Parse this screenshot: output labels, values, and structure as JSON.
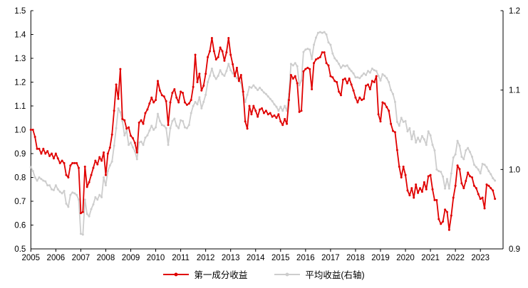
{
  "legend": {
    "series1_label": "第一成分收益",
    "series2_label": "平均收益(右轴)"
  },
  "colors": {
    "series1": "#e00000",
    "series2": "#cdcdcd",
    "axis": "#000000"
  },
  "chart_data": {
    "type": "line",
    "title": "",
    "x_start_year": 2005,
    "x_start_month": 1,
    "x_axis": {
      "labels": [
        "2005",
        "2006",
        "2007",
        "2008",
        "2009",
        "2010",
        "2011",
        "2012",
        "2013",
        "2014",
        "2015",
        "2016",
        "2017",
        "2018",
        "2019",
        "2020",
        "2021",
        "2022",
        "2023"
      ]
    },
    "y_axis_left": {
      "min": 0.5,
      "max": 1.5,
      "tick_step": 0.1,
      "labels": [
        "0.5",
        "0.6",
        "0.7",
        "0.8",
        "0.9",
        "1.0",
        "1.1",
        "1.2",
        "1.3",
        "1.4",
        "1.5"
      ]
    },
    "y_axis_right": {
      "min": 0.9,
      "max": 1.2,
      "tick_step": 0.1,
      "labels": [
        "0.9",
        "1.0",
        "1.1",
        "1.2"
      ]
    },
    "grid": false,
    "legend_position": "bottom-center",
    "series": [
      {
        "name": "第一成分收益",
        "axis": "left",
        "color": "#e00000",
        "values": [
          1.0,
          1.0,
          0.97,
          0.92,
          0.92,
          0.9,
          0.92,
          0.9,
          0.91,
          0.89,
          0.9,
          0.88,
          0.9,
          0.88,
          0.86,
          0.87,
          0.86,
          0.81,
          0.8,
          0.85,
          0.86,
          0.86,
          0.86,
          0.84,
          0.65,
          0.655,
          0.845,
          0.76,
          0.78,
          0.81,
          0.84,
          0.87,
          0.855,
          0.885,
          0.87,
          0.905,
          0.81,
          0.9,
          0.925,
          0.98,
          1.08,
          1.19,
          1.13,
          1.255,
          1.045,
          1.04,
          1.005,
          1.01,
          0.975,
          0.965,
          0.945,
          0.905,
          1.03,
          1.04,
          1.025,
          1.07,
          1.085,
          1.11,
          1.135,
          1.115,
          1.125,
          1.205,
          1.165,
          1.145,
          1.14,
          1.12,
          1.02,
          1.115,
          1.155,
          1.17,
          1.135,
          1.115,
          1.16,
          1.155,
          1.115,
          1.105,
          1.11,
          1.125,
          1.18,
          1.315,
          1.2,
          1.235,
          1.165,
          1.185,
          1.235,
          1.305,
          1.33,
          1.385,
          1.33,
          1.295,
          1.305,
          1.345,
          1.33,
          1.29,
          1.325,
          1.385,
          1.315,
          1.275,
          1.225,
          1.26,
          1.205,
          1.23,
          1.16,
          1.035,
          1.005,
          1.1,
          1.065,
          1.1,
          1.08,
          1.055,
          1.085,
          1.09,
          1.07,
          1.08,
          1.065,
          1.07,
          1.055,
          1.06,
          1.05,
          1.065,
          1.035,
          1.02,
          1.045,
          1.025,
          1.125,
          1.23,
          1.215,
          1.225,
          1.195,
          1.075,
          1.08,
          1.245,
          1.255,
          1.26,
          1.255,
          1.17,
          1.28,
          1.295,
          1.3,
          1.305,
          1.325,
          1.325,
          1.28,
          1.27,
          1.225,
          1.22,
          1.205,
          1.2,
          1.16,
          1.145,
          1.21,
          1.215,
          1.195,
          1.215,
          1.19,
          1.165,
          1.135,
          1.115,
          1.135,
          1.125,
          1.13,
          1.185,
          1.19,
          1.17,
          1.205,
          1.2,
          1.225,
          1.065,
          1.035,
          1.115,
          1.11,
          1.095,
          1.08,
          1.025,
          0.995,
          0.99,
          0.915,
          0.845,
          0.8,
          0.845,
          0.81,
          0.745,
          0.725,
          0.755,
          0.715,
          0.77,
          0.735,
          0.755,
          0.74,
          0.78,
          0.75,
          0.805,
          0.81,
          0.75,
          0.705,
          0.705,
          0.625,
          0.605,
          0.615,
          0.665,
          0.655,
          0.58,
          0.64,
          0.715,
          0.765,
          0.85,
          0.835,
          0.775,
          0.755,
          0.785,
          0.82,
          0.805,
          0.8,
          0.765,
          0.755,
          0.73,
          0.71,
          0.715,
          0.67,
          0.77,
          0.765,
          0.755,
          0.745,
          0.71
        ]
      },
      {
        "name": "平均收益(右轴)",
        "axis": "right",
        "color": "#cdcdcd",
        "values": [
          1.003,
          0.998,
          0.99,
          0.986,
          0.99,
          0.988,
          0.986,
          0.985,
          0.98,
          0.98,
          0.975,
          0.974,
          0.98,
          0.975,
          0.972,
          0.97,
          0.973,
          0.957,
          0.953,
          0.968,
          0.971,
          0.97,
          0.968,
          0.962,
          0.919,
          0.918,
          0.962,
          0.944,
          0.941,
          0.95,
          0.956,
          0.965,
          0.962,
          0.968,
          0.965,
          0.99,
          0.98,
          0.998,
          1.005,
          1.01,
          1.03,
          1.052,
          1.077,
          1.072,
          1.061,
          1.043,
          1.049,
          1.031,
          1.034,
          1.028,
          1.023,
          1.013,
          1.034,
          1.035,
          1.031,
          1.04,
          1.043,
          1.049,
          1.055,
          1.05,
          1.053,
          1.07,
          1.061,
          1.056,
          1.055,
          1.052,
          1.031,
          1.052,
          1.061,
          1.064,
          1.055,
          1.052,
          1.062,
          1.061,
          1.053,
          1.052,
          1.056,
          1.071,
          1.08,
          1.085,
          1.082,
          1.091,
          1.077,
          1.085,
          1.094,
          1.11,
          1.118,
          1.127,
          1.118,
          1.114,
          1.118,
          1.125,
          1.12,
          1.118,
          1.124,
          1.133,
          1.125,
          1.121,
          1.119,
          1.115,
          1.112,
          1.109,
          1.094,
          1.085,
          1.094,
          1.104,
          1.103,
          1.106,
          1.103,
          1.1,
          1.103,
          1.1,
          1.097,
          1.095,
          1.092,
          1.089,
          1.086,
          1.082,
          1.079,
          1.074,
          1.079,
          1.074,
          1.08,
          1.074,
          1.095,
          1.133,
          1.131,
          1.134,
          1.13,
          1.106,
          1.112,
          1.148,
          1.151,
          1.152,
          1.151,
          1.139,
          1.157,
          1.166,
          1.172,
          1.173,
          1.172,
          1.173,
          1.17,
          1.16,
          1.157,
          1.146,
          1.14,
          1.137,
          1.133,
          1.128,
          1.131,
          1.13,
          1.131,
          1.127,
          1.124,
          1.121,
          1.116,
          1.116,
          1.115,
          1.118,
          1.121,
          1.119,
          1.124,
          1.122,
          1.127,
          1.125,
          1.124,
          1.118,
          1.112,
          1.12,
          1.118,
          1.115,
          1.11,
          1.1,
          1.095,
          1.085,
          1.06,
          1.055,
          1.065,
          1.06,
          1.061,
          1.048,
          1.052,
          1.038,
          1.048,
          1.034,
          1.04,
          1.035,
          1.042,
          1.038,
          1.031,
          1.048,
          1.043,
          1.031,
          1.024,
          1.0,
          0.998,
          0.997,
          0.991,
          0.976,
          0.988,
          0.976,
          0.995,
          1.015,
          1.019,
          1.036,
          1.03,
          1.016,
          1.013,
          1.024,
          1.027,
          1.022,
          1.016,
          1.006,
          1.003,
          1.0,
          0.995,
          1.007,
          1.006,
          1.003,
          0.998,
          0.994,
          0.989,
          0.986
        ]
      }
    ]
  }
}
